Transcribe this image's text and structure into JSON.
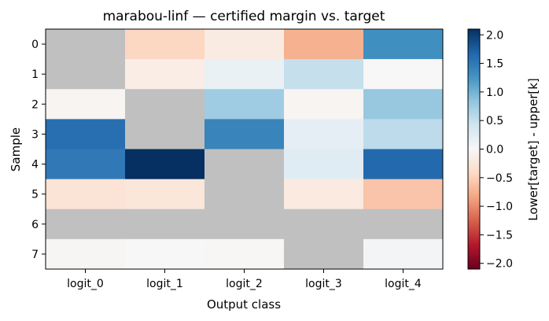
{
  "chart_data": {
    "type": "heatmap",
    "title": "marabou-linf — certified margin vs. target",
    "xlabel": "Output class",
    "ylabel": "Sample",
    "x_categories": [
      "logit_0",
      "logit_1",
      "logit_2",
      "logit_3",
      "logit_4"
    ],
    "y_categories": [
      "0",
      "1",
      "2",
      "3",
      "4",
      "5",
      "6",
      "7"
    ],
    "values": [
      [
        null,
        -0.45,
        -0.18,
        -0.75,
        1.3
      ],
      [
        null,
        -0.15,
        0.15,
        0.5,
        0.0
      ],
      [
        -0.05,
        null,
        0.75,
        -0.05,
        0.8
      ],
      [
        1.6,
        null,
        1.4,
        0.2,
        0.55
      ],
      [
        1.5,
        2.1,
        null,
        0.25,
        1.65
      ],
      [
        -0.3,
        -0.25,
        null,
        -0.2,
        -0.6
      ],
      [
        null,
        null,
        null,
        null,
        null
      ],
      [
        -0.03,
        0.0,
        -0.02,
        null,
        0.06
      ]
    ],
    "missing_color": "#c0c0c0",
    "colormap": "RdBu",
    "colorbar": {
      "label": "Lower[target] - upper[k]",
      "range": [
        -2.1,
        2.1
      ],
      "ticks": [
        -2.0,
        -1.5,
        -1.0,
        -0.5,
        0.0,
        0.5,
        1.0,
        1.5,
        2.0
      ],
      "tick_labels": [
        "−2.0",
        "−1.5",
        "−1.0",
        "−0.5",
        "0.0",
        "0.5",
        "1.0",
        "1.5",
        "2.0"
      ]
    }
  }
}
